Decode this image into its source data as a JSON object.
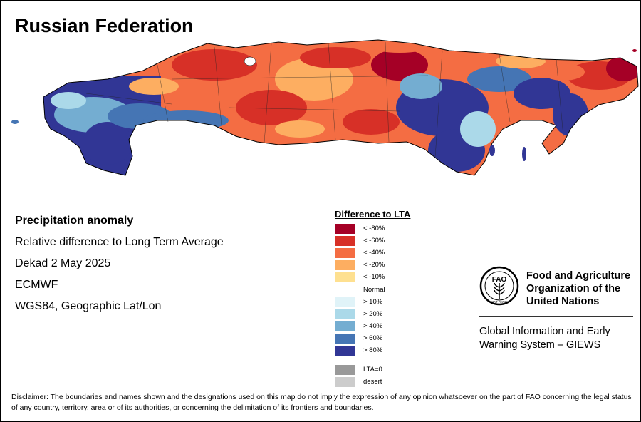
{
  "title": "Russian Federation",
  "info": {
    "heading": "Precipitation anomaly",
    "line1": "Relative difference to Long Term Average",
    "line2": "Dekad 2 May 2025",
    "line3": "ECMWF",
    "line4": "WGS84, Geographic Lat/Lon"
  },
  "legend": {
    "title": "Difference to LTA",
    "items": [
      {
        "label": "< -80%",
        "color": "#a50026"
      },
      {
        "label": "< -60%",
        "color": "#d73027"
      },
      {
        "label": "< -40%",
        "color": "#f46d43"
      },
      {
        "label": "< -20%",
        "color": "#fdae61"
      },
      {
        "label": "< -10%",
        "color": "#fee090"
      },
      {
        "label": "> 10%",
        "color": "#e0f3f8"
      },
      {
        "label": "> 20%",
        "color": "#abd9e9"
      },
      {
        "label": "> 40%",
        "color": "#74add1"
      },
      {
        "label": "> 60%",
        "color": "#4575b4"
      },
      {
        "label": "> 80%",
        "color": "#313695"
      },
      {
        "label": "LTA=0",
        "color": "#999999"
      },
      {
        "label": "desert",
        "color": "#cccccc"
      }
    ],
    "normal_label": "Normal"
  },
  "fao": {
    "logo_text": "FAO",
    "logo_motto": "FIAT PANIS",
    "name_line1": "Food and Agriculture",
    "name_line2": "Organization of the",
    "name_line3": "United Nations",
    "giews_line1": "Global Information and Early",
    "giews_line2": "Warning System – GIEWS"
  },
  "disclaimer": "Disclaimer: The boundaries and names shown and the designations used on this map do not imply the expression of any opinion whatsoever on the part of FAO concerning the legal status of any country, territory, area or of its authorities, or concerning the delimitation of its frontiers and boundaries."
}
